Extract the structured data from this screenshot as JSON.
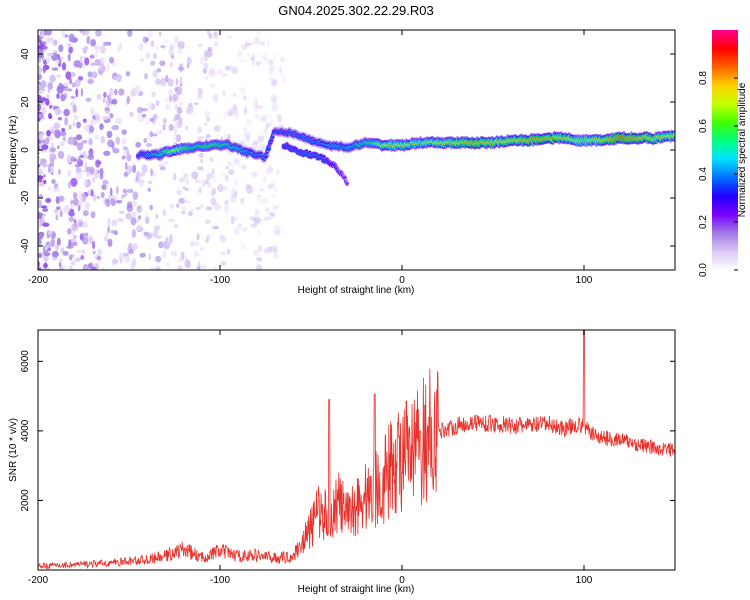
{
  "title": "GN04.2025.302.22.29.R03",
  "chart_data": [
    {
      "type": "heatmap",
      "xlabel": "Height of straight line (km)",
      "ylabel": "Frequency (Hz)",
      "xlim": [
        -200,
        150
      ],
      "ylim": [
        -50,
        50
      ],
      "x_ticks": [
        -200,
        -100,
        0,
        100
      ],
      "y_ticks": [
        -40,
        -20,
        0,
        20,
        40
      ],
      "colorbar": {
        "label": "Normalized spectral amplitude",
        "range": [
          0,
          1
        ],
        "ticks": [
          "0.0",
          "0.2",
          "0.4",
          "0.6",
          "0.8"
        ],
        "colors": [
          "#ffffff",
          "#dcc8f5",
          "#a07ae6",
          "#7a00ff",
          "#2000ff",
          "#0070ff",
          "#00e0ff",
          "#00ff80",
          "#40ff00",
          "#c8ff00",
          "#ffd000",
          "#ff6000",
          "#ff0000",
          "#ff0090"
        ]
      },
      "ridge": {
        "x": [
          -145,
          -135,
          -125,
          -115,
          -105,
          -95,
          -85,
          -75,
          -70,
          -60,
          -50,
          -40,
          -30,
          -20,
          -10,
          0,
          10,
          20,
          30,
          40,
          50,
          60,
          70,
          80,
          90,
          95,
          100,
          110,
          120,
          130,
          140,
          150
        ],
        "y": [
          -2,
          -2,
          0,
          1,
          2,
          2,
          -1,
          -3,
          8,
          7,
          4,
          2,
          1,
          3,
          2,
          2,
          3,
          3,
          3,
          3,
          3,
          4,
          4,
          5,
          5,
          4,
          4,
          4,
          5,
          5,
          5,
          6
        ],
        "amplitude": [
          0.35,
          0.5,
          0.7,
          0.55,
          0.6,
          0.55,
          0.45,
          0.4,
          0.35,
          0.4,
          0.4,
          0.45,
          0.45,
          0.55,
          0.7,
          0.7,
          0.65,
          0.7,
          0.75,
          0.8,
          0.75,
          0.75,
          0.8,
          0.8,
          0.75,
          0.7,
          0.65,
          0.75,
          0.85,
          0.8,
          0.75,
          0.7
        ]
      },
      "branch": {
        "x": [
          -65,
          -55,
          -45,
          -38,
          -33,
          -30
        ],
        "y": [
          2,
          -1,
          -3,
          -6,
          -10,
          -14
        ],
        "amplitude": [
          0.35,
          0.4,
          0.4,
          0.3,
          0.25,
          0.2
        ]
      },
      "noise_region": {
        "x_range": [
          -200,
          -65
        ],
        "amplitude_max": 0.2
      }
    },
    {
      "type": "line",
      "xlabel": "Height of straight line (km)",
      "ylabel": "SNR (10 * v/v)",
      "xlim": [
        -200,
        150
      ],
      "ylim": [
        0,
        6900
      ],
      "x_ticks": [
        -200,
        -100,
        0,
        100
      ],
      "y_ticks": [
        2000,
        4000,
        6000
      ],
      "series": [
        {
          "name": "SNR",
          "color": "#e8302a",
          "x": [
            -200,
            -180,
            -160,
            -140,
            -130,
            -120,
            -110,
            -100,
            -90,
            -80,
            -70,
            -60,
            -50,
            -45,
            -40,
            -35,
            -30,
            -25,
            -20,
            -15,
            -10,
            -5,
            0,
            5,
            10,
            15,
            20,
            25,
            30,
            40,
            50,
            60,
            70,
            80,
            90,
            95,
            100,
            105,
            110,
            120,
            130,
            140,
            150
          ],
          "y": [
            120,
            150,
            200,
            300,
            400,
            600,
            350,
            550,
            400,
            420,
            350,
            380,
            1200,
            1800,
            1400,
            2000,
            1500,
            1900,
            2100,
            2300,
            2600,
            3000,
            3300,
            3200,
            3600,
            3900,
            4000,
            4050,
            4150,
            4250,
            4200,
            4150,
            4150,
            4200,
            4050,
            4200,
            4100,
            3900,
            3800,
            3750,
            3600,
            3500,
            3450
          ],
          "spikes": [
            {
              "x": -40,
              "y": 4900
            },
            {
              "x": -15,
              "y": 5050
            },
            {
              "x": 10,
              "y": 4000
            },
            {
              "x": 100,
              "y": 6900
            }
          ]
        }
      ]
    }
  ]
}
